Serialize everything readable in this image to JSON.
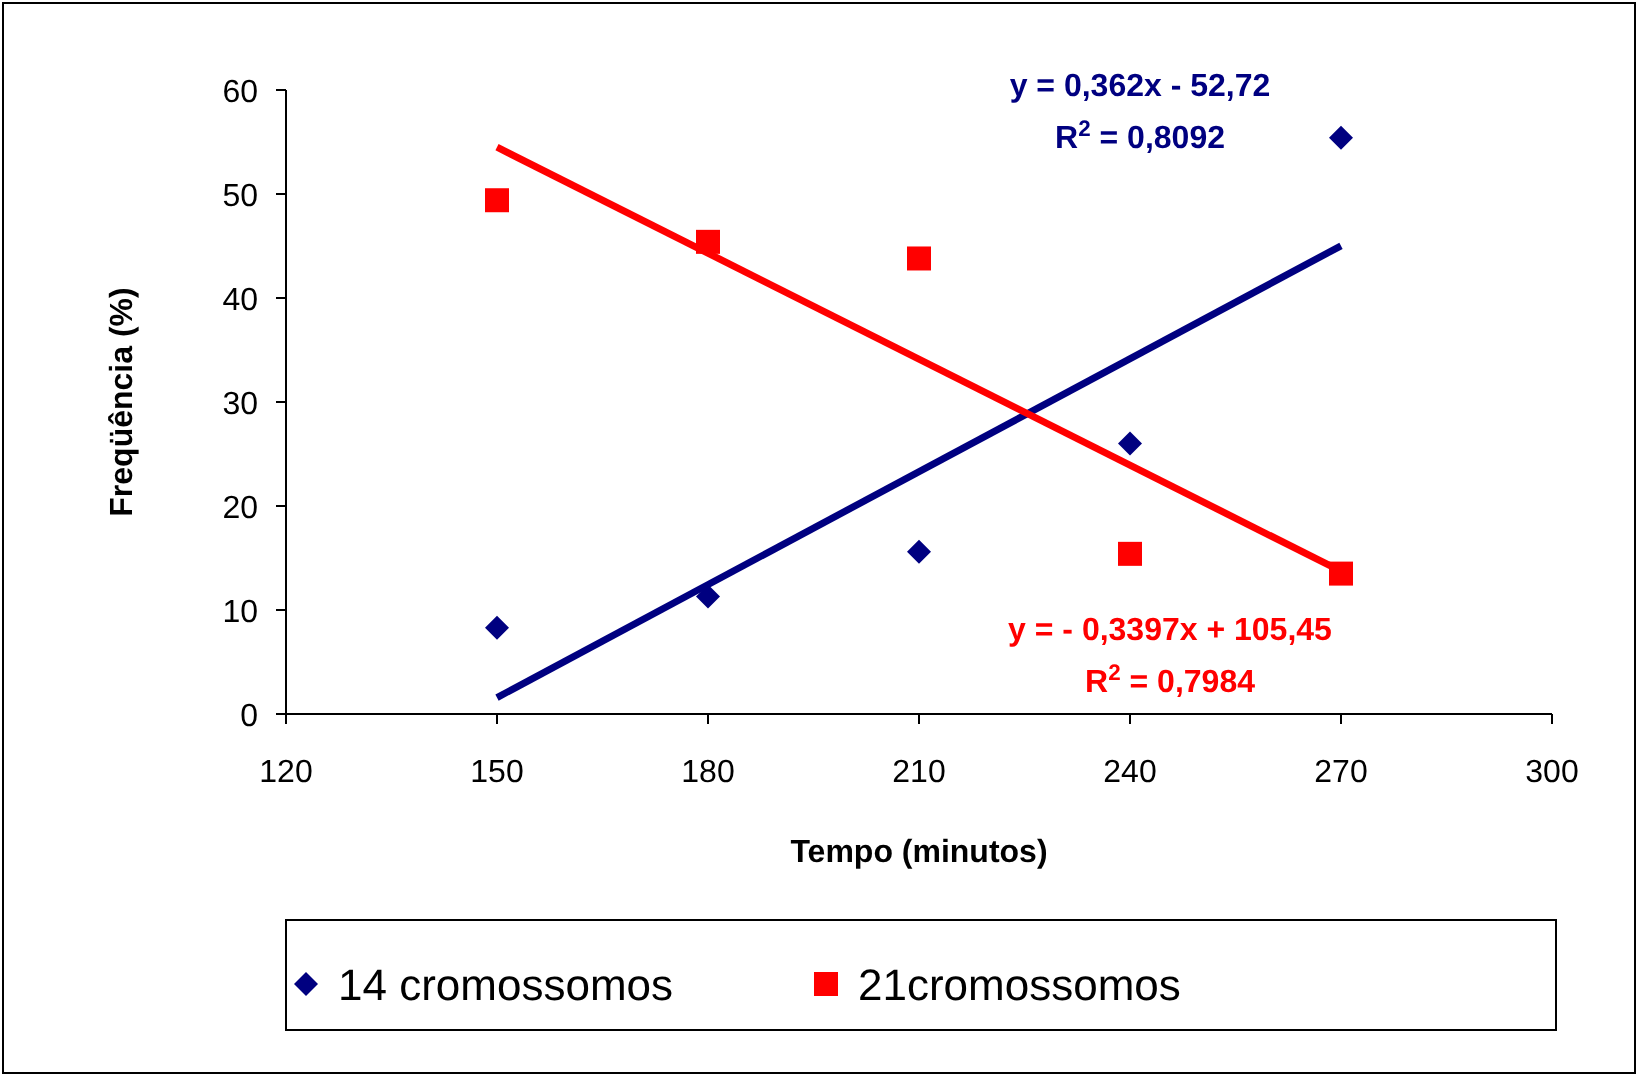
{
  "chart_data": {
    "type": "scatter",
    "xlabel": "Tempo (minutos)",
    "ylabel": "Freqüência (%)",
    "xlim": [
      120,
      300
    ],
    "xticks": [
      120,
      150,
      180,
      210,
      240,
      270,
      300
    ],
    "ylim": [
      0,
      60
    ],
    "yticks": [
      0,
      10,
      20,
      30,
      40,
      50,
      60
    ],
    "grid": false,
    "legend": "bottom",
    "series": [
      {
        "name": "14 cromossomos",
        "color": "#000080",
        "marker": "diamond",
        "x": [
          150,
          180,
          210,
          240,
          270
        ],
        "values": [
          8.3,
          11.3,
          15.6,
          26,
          55.4
        ]
      },
      {
        "name": "21cromossomos",
        "color": "#ff0000",
        "marker": "square",
        "x": [
          150,
          180,
          210,
          240,
          270
        ],
        "values": [
          49.4,
          45.4,
          43.8,
          15.4,
          13.5
        ]
      },
      {
        "type": "line",
        "color": "#000080",
        "marker": "none",
        "x": [
          150,
          270
        ],
        "values": [
          1.58,
          45.02
        ]
      },
      {
        "type": "line",
        "color": "#ff0000",
        "marker": "none",
        "x": [
          150,
          270
        ],
        "values": [
          54.5,
          13.73
        ]
      }
    ],
    "annotations": [
      "y = 0,362x - 52,72",
      "R$^{2}$ = 0,8092",
      "y = - 0,3397x + 105,45",
      "R$^{2}$ = 0,7984"
    ]
  }
}
